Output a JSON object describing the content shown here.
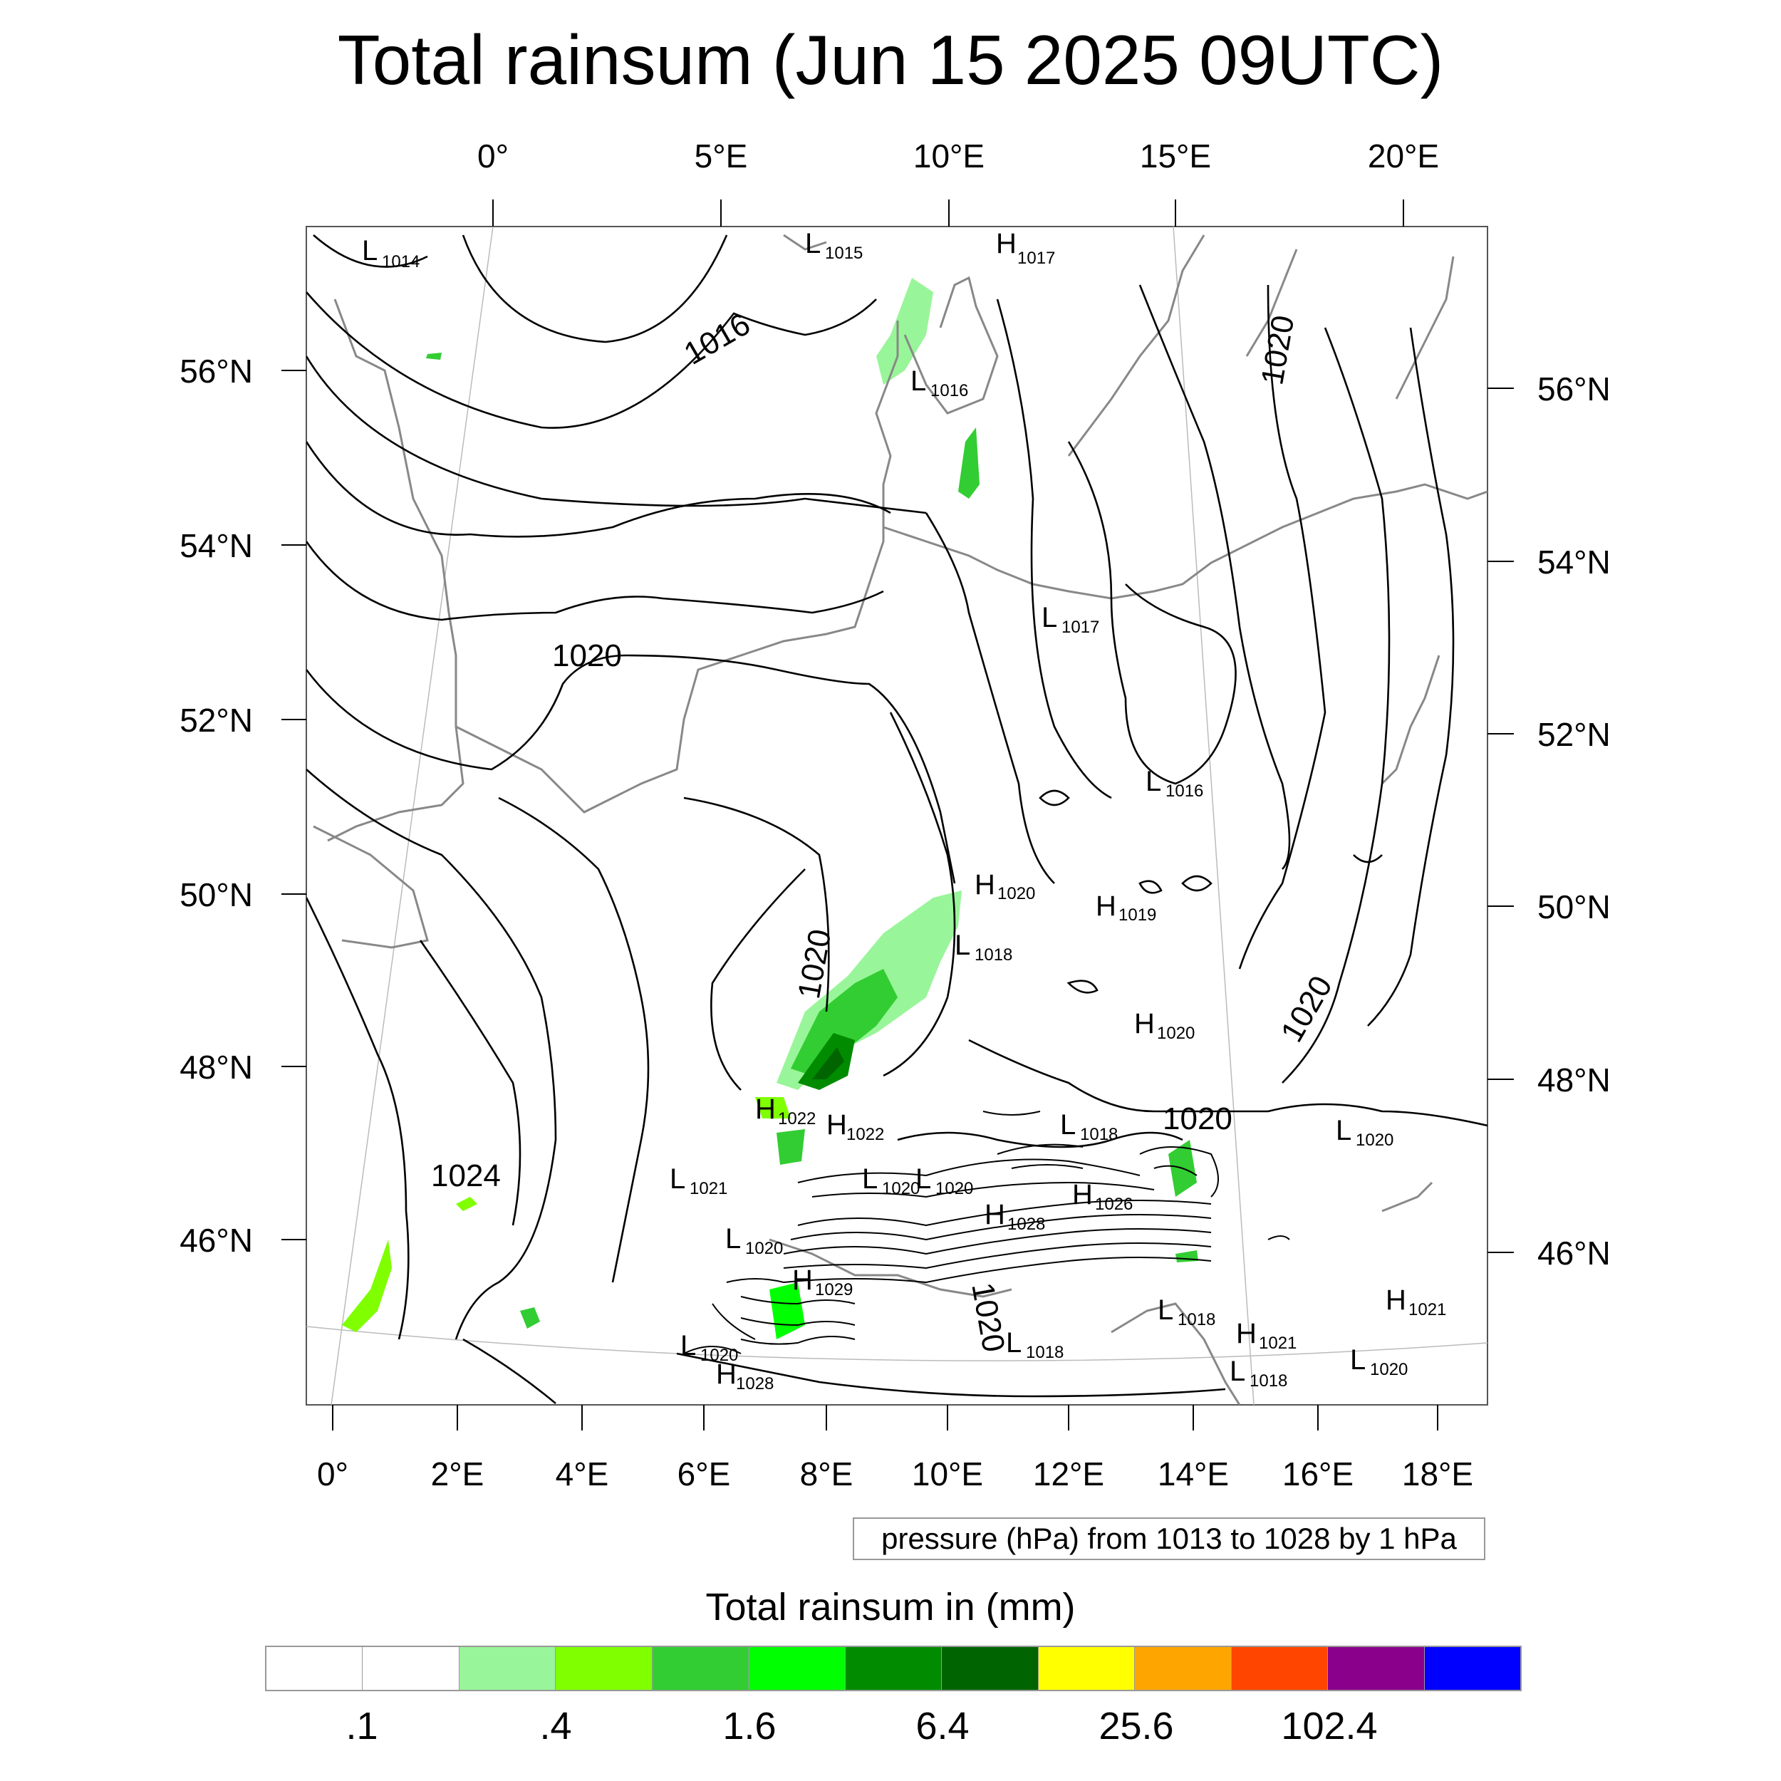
{
  "title": "Total rainsum (Jun 15 2025 09UTC)",
  "top_lon_ticks": [
    "0°",
    "5°E",
    "10°E",
    "15°E",
    "20°E"
  ],
  "bottom_lon_ticks": [
    "0°",
    "2°E",
    "4°E",
    "6°E",
    "8°E",
    "10°E",
    "12°E",
    "14°E",
    "16°E",
    "18°E"
  ],
  "left_lat_ticks": [
    "56°N",
    "54°N",
    "52°N",
    "50°N",
    "48°N",
    "46°N"
  ],
  "right_lat_ticks": [
    "56°N",
    "54°N",
    "52°N",
    "50°N",
    "48°N",
    "46°N"
  ],
  "isobar_labels": [
    "1016",
    "1020",
    "1020",
    "1024",
    "1020",
    "1020",
    "1020",
    "1020"
  ],
  "pressure_centers": [
    {
      "type": "L",
      "value": "1014"
    },
    {
      "type": "L",
      "value": "1015"
    },
    {
      "type": "H",
      "value": "1017"
    },
    {
      "type": "L",
      "value": "1016"
    },
    {
      "type": "L",
      "value": "1017"
    },
    {
      "type": "L",
      "value": "1016"
    },
    {
      "type": "H",
      "value": "1020"
    },
    {
      "type": "H",
      "value": "1019"
    },
    {
      "type": "L",
      "value": "1018"
    },
    {
      "type": "H",
      "value": "1020"
    },
    {
      "type": "H",
      "value": "1022"
    },
    {
      "type": "H",
      "value": "1022"
    },
    {
      "type": "L",
      "value": "1018"
    },
    {
      "type": "L",
      "value": "1020"
    },
    {
      "type": "L",
      "value": "1021"
    },
    {
      "type": "L",
      "value": "1020"
    },
    {
      "type": "H",
      "value": "1026"
    },
    {
      "type": "H",
      "value": "1028"
    },
    {
      "type": "L",
      "value": "1020"
    },
    {
      "type": "H",
      "value": "1029"
    },
    {
      "type": "L",
      "value": "1020"
    },
    {
      "type": "H",
      "value": "1028"
    },
    {
      "type": "L",
      "value": "1018"
    },
    {
      "type": "L",
      "value": "1018"
    },
    {
      "type": "H",
      "value": "1021"
    },
    {
      "type": "L",
      "value": "1018"
    },
    {
      "type": "H",
      "value": "1021"
    },
    {
      "type": "L",
      "value": "1020"
    },
    {
      "type": "L",
      "value": "1020"
    }
  ],
  "contour_info": "pressure (hPa) from 1013 to 1028 by 1 hPa",
  "colorbar": {
    "title": "Total rainsum in (mm)",
    "colors": [
      "#ffffff",
      "#ffffff",
      "#99f599",
      "#7fff00",
      "#32cd32",
      "#00ff00",
      "#008b00",
      "#006400",
      "#ffff00",
      "#ffa500",
      "#ff4500",
      "#8b008b",
      "#0000ff"
    ],
    "labels": [
      ".1",
      ".4",
      "1.6",
      "6.4",
      "25.6",
      "102.4"
    ]
  }
}
